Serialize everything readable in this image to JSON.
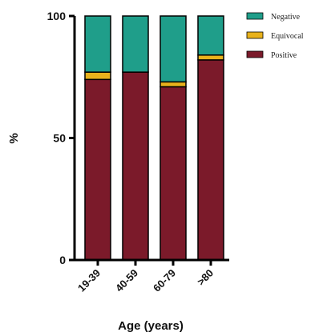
{
  "chart_data": {
    "type": "bar",
    "stacked": true,
    "categories": [
      "19-39",
      "40-59",
      "60-79",
      ">80"
    ],
    "series": [
      {
        "name": "Positive",
        "values": [
          74,
          77,
          71,
          82
        ],
        "color": "#7b1a2a"
      },
      {
        "name": "Equivocal",
        "values": [
          3,
          0,
          2,
          2
        ],
        "color": "#e8b21c"
      },
      {
        "name": "Negative",
        "values": [
          23,
          23,
          27,
          16
        ],
        "color": "#1f9e8a"
      }
    ],
    "legend_order": [
      "Negative",
      "Equivocal",
      "Positive"
    ],
    "legend_position": "top-right",
    "title": "",
    "xlabel": "Age (years)",
    "ylabel": "%",
    "ylim": [
      0,
      100
    ],
    "yticks": [
      0,
      50,
      100
    ],
    "grid": false
  }
}
